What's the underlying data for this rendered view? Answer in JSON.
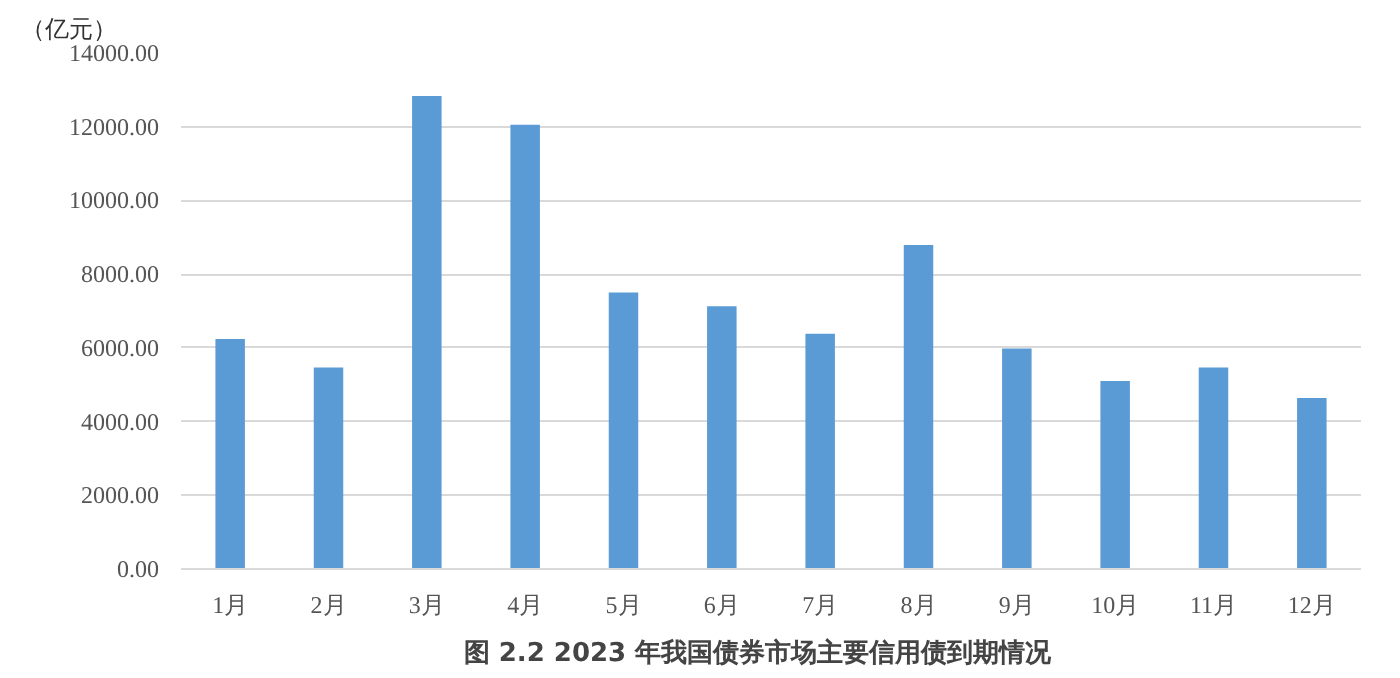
{
  "chart_data": {
    "type": "bar",
    "title": "图 2.2    2023 年我国债券市场主要信用债到期情况",
    "ylabel": "（亿元）",
    "categories": [
      "1月",
      "2月",
      "3月",
      "4月",
      "5月",
      "6月",
      "7月",
      "8月",
      "9月",
      "10月",
      "11月",
      "12月"
    ],
    "values": [
      6240,
      5470,
      12830,
      12050,
      7500,
      7130,
      6380,
      8790,
      5980,
      5100,
      5470,
      4640
    ],
    "color": "#5b9bd5",
    "ylim": [
      0,
      14000
    ],
    "yticks": [
      {
        "value": 0,
        "label": "0.00"
      },
      {
        "value": 2000,
        "label": "2000.00"
      },
      {
        "value": 4000,
        "label": "4000.00"
      },
      {
        "value": 6000,
        "label": "6000.00"
      },
      {
        "value": 8000,
        "label": "8000.00"
      },
      {
        "value": 10000,
        "label": "10000.00"
      },
      {
        "value": 12000,
        "label": "12000.00"
      },
      {
        "value": 14000,
        "label": "14000.00"
      }
    ],
    "grid": "y"
  }
}
